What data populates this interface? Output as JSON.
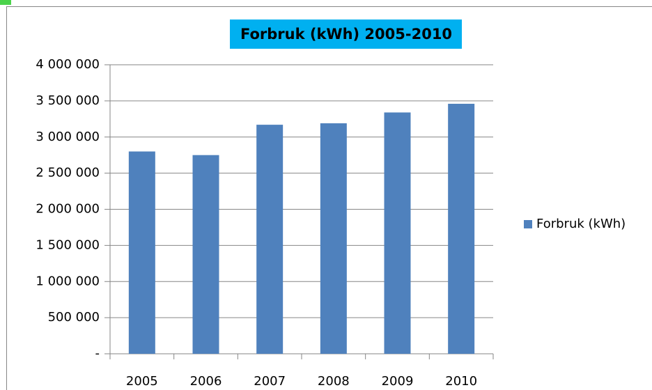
{
  "chart_data": {
    "type": "bar",
    "title": "Forbruk (kWh) 2005-2010",
    "categories": [
      "2005",
      "2006",
      "2007",
      "2008",
      "2009",
      "2010"
    ],
    "series": [
      {
        "name": "Forbruk (kWh)",
        "color": "#4f81bd",
        "values": [
          2800000,
          2750000,
          3170000,
          3190000,
          3340000,
          3460000
        ]
      }
    ],
    "ylim": [
      0,
      4000000
    ],
    "yticks": [
      {
        "value": 0,
        "label": "-"
      },
      {
        "value": 500000,
        "label": "500 000"
      },
      {
        "value": 1000000,
        "label": "1 000 000"
      },
      {
        "value": 1500000,
        "label": "1 500 000"
      },
      {
        "value": 2000000,
        "label": "2 000 000"
      },
      {
        "value": 2500000,
        "label": "2 500 000"
      },
      {
        "value": 3000000,
        "label": "3 000 000"
      },
      {
        "value": 3500000,
        "label": "3 500 000"
      },
      {
        "value": 4000000,
        "label": "4 000 000"
      }
    ],
    "grid": true,
    "legend": "right"
  }
}
